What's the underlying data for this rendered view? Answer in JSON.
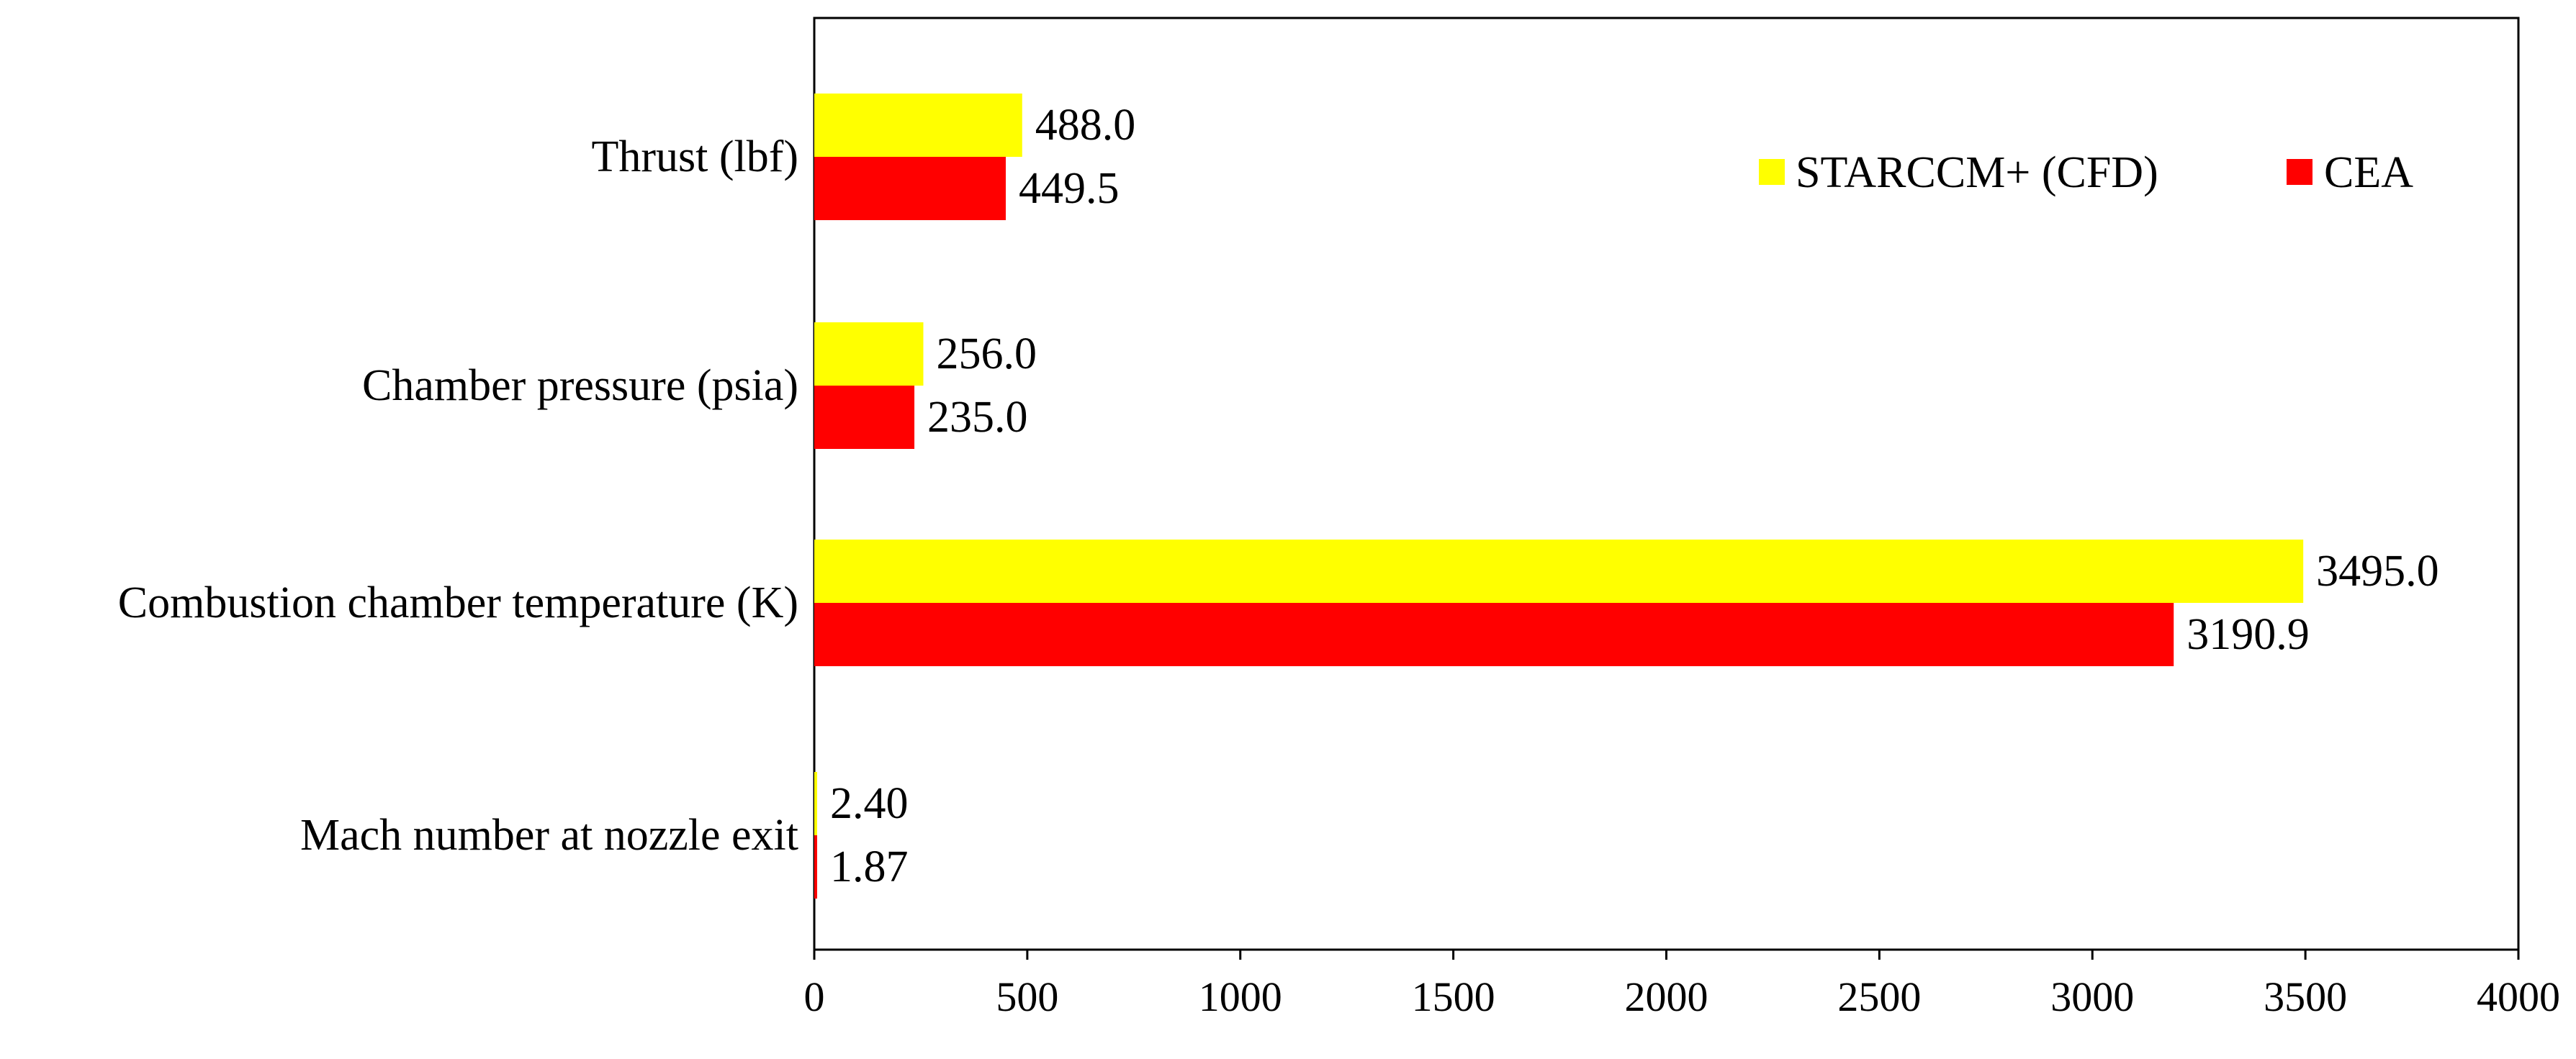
{
  "chart_data": {
    "type": "bar",
    "orientation": "horizontal",
    "categories": [
      "Thrust (lbf)",
      "Chamber pressure (psia)",
      "Combustion chamber temperature (K)",
      "Mach number at nozzle exit"
    ],
    "series": [
      {
        "name": "STARCCM+ (CFD)",
        "color": "#ffff00",
        "values": [
          488.0,
          256.0,
          3495.0,
          2.4
        ],
        "labels": [
          "488.0",
          "256.0",
          "3495.0",
          "2.40"
        ]
      },
      {
        "name": "CEA",
        "color": "#ff0000",
        "values": [
          449.5,
          235.0,
          3190.9,
          1.87
        ],
        "labels": [
          "449.5",
          "235.0",
          "3190.9",
          "1.87"
        ]
      }
    ],
    "xlim": [
      0,
      4000
    ],
    "xticks": [
      0,
      500,
      1000,
      1500,
      2000,
      2500,
      3000,
      3500,
      4000
    ],
    "xtick_labels": [
      "0",
      "500",
      "1000",
      "1500",
      "2000",
      "2500",
      "3000",
      "3500",
      "4000"
    ],
    "title": "",
    "xlabel": "",
    "ylabel": "",
    "grid": false,
    "legend_position": "top-right"
  }
}
